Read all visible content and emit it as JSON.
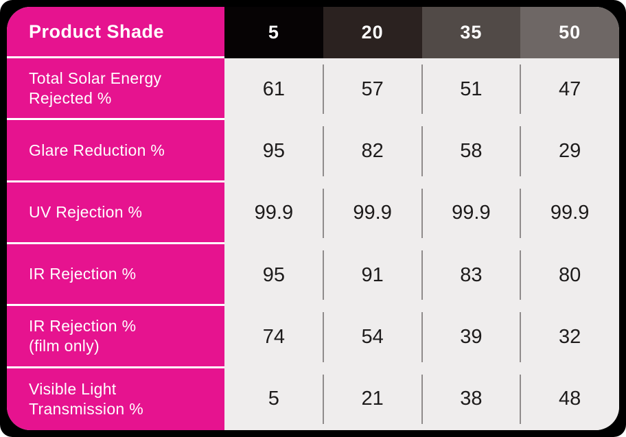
{
  "colors": {
    "accent_pink": "#E6138F",
    "row_bg": "#EFEDED",
    "frame_black": "#000000",
    "page_bg": "#FFFFFF",
    "header_text": "#FFFFFF",
    "value_text": "#1D1B1B",
    "divider_gray": "#8F8B8B",
    "separator_white": "#FFFFFF"
  },
  "table": {
    "corner_label": "Product Shade",
    "columns": [
      {
        "label": "5",
        "bg": "#060304"
      },
      {
        "label": "20",
        "bg": "#2B2220"
      },
      {
        "label": "35",
        "bg": "#514A47"
      },
      {
        "label": "50",
        "bg": "#6E6765"
      }
    ],
    "rows": [
      {
        "label": "Total Solar Energy\nRejected %",
        "values": [
          "61",
          "57",
          "51",
          "47"
        ]
      },
      {
        "label": "Glare Reduction %",
        "values": [
          "95",
          "82",
          "58",
          "29"
        ]
      },
      {
        "label": "UV Rejection %",
        "values": [
          "99.9",
          "99.9",
          "99.9",
          "99.9"
        ]
      },
      {
        "label": "IR Rejection %",
        "values": [
          "95",
          "91",
          "83",
          "80"
        ]
      },
      {
        "label": "IR Rejection %\n(film only)",
        "values": [
          "74",
          "54",
          "39",
          "32"
        ]
      },
      {
        "label": "Visible Light\nTransmission %",
        "values": [
          "5",
          "21",
          "38",
          "48"
        ]
      }
    ]
  },
  "chart_data": {
    "type": "table",
    "corner_header": "Product Shade",
    "columns": [
      "5",
      "20",
      "35",
      "50"
    ],
    "rows": [
      {
        "label": "Total Solar Energy Rejected %",
        "values": [
          61,
          57,
          51,
          47
        ]
      },
      {
        "label": "Glare Reduction %",
        "values": [
          95,
          82,
          58,
          29
        ]
      },
      {
        "label": "UV Rejection %",
        "values": [
          99.9,
          99.9,
          99.9,
          99.9
        ]
      },
      {
        "label": "IR Rejection %",
        "values": [
          95,
          91,
          83,
          80
        ]
      },
      {
        "label": "IR Rejection % (film only)",
        "values": [
          74,
          54,
          39,
          32
        ]
      },
      {
        "label": "Visible Light Transmission %",
        "values": [
          5,
          21,
          38,
          48
        ]
      }
    ],
    "legend_position": "none",
    "grid": "cell-dividers"
  }
}
